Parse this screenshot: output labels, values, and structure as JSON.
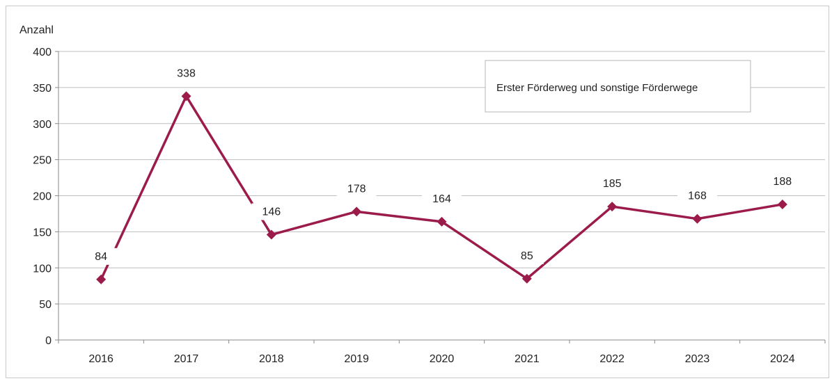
{
  "chart_data": {
    "type": "line",
    "ylabel": "Anzahl",
    "xlabel": "",
    "title": "",
    "categories": [
      "2016",
      "2017",
      "2018",
      "2019",
      "2020",
      "2021",
      "2022",
      "2023",
      "2024"
    ],
    "series": [
      {
        "name": "Erster Förderweg und sonstige Förderwege",
        "values": [
          84,
          338,
          146,
          178,
          164,
          85,
          185,
          168,
          188
        ],
        "color": "#9b1b4b",
        "marker": "diamond"
      }
    ],
    "ylim": [
      0,
      400
    ],
    "yticks": [
      0,
      50,
      100,
      150,
      200,
      250,
      300,
      350,
      400
    ],
    "data_labels": [
      "84",
      "338",
      "146",
      "178",
      "164",
      "85",
      "185",
      "168",
      "188"
    ],
    "grid": true,
    "legend_position": "top-right"
  }
}
